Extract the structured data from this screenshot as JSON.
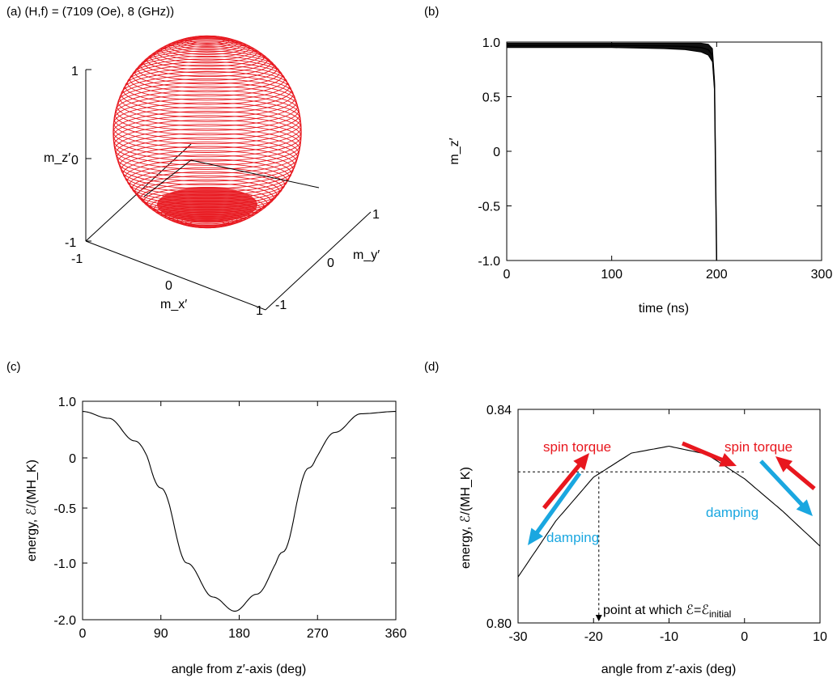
{
  "colors": {
    "sphere": "#e8171e",
    "spin_torque": "#e8171e",
    "damping": "#1aa7e0",
    "curve": "#000000"
  },
  "chart_data": [
    {
      "panel": "(a)",
      "type": "scatter",
      "title": "(a) (H,f) = (7109 (Oe), 8 (GHz))",
      "description_kind": "3d-trajectory",
      "xlabel": "m_x′",
      "ylabel": "m_y′",
      "zlabel": "m_z′",
      "xlim": [
        -1,
        1
      ],
      "ylim": [
        -1,
        1
      ],
      "zlim": [
        -1,
        1
      ],
      "xticks": [
        "-1",
        "0",
        "1"
      ],
      "yticks": [
        "-1",
        "0",
        "1"
      ],
      "zticks": [
        "-1",
        "0",
        "1"
      ],
      "series": [
        {
          "color": "#e8171e",
          "shape": "unit sphere",
          "rings": 60
        }
      ]
    },
    {
      "panel": "(b)",
      "type": "line",
      "title": "(b)",
      "xlabel": "time (ns)",
      "ylabel": "m_z′",
      "xlim": [
        0,
        300
      ],
      "ylim": [
        -1.0,
        1.0
      ],
      "xticks": [
        "0",
        "100",
        "200",
        "300"
      ],
      "yticks": [
        "1.0",
        "0.5",
        "0",
        "-0.5",
        "-1.0"
      ],
      "series": [
        {
          "x": [
            0,
            50,
            100,
            150,
            170,
            185,
            192,
            196,
            198,
            199,
            200
          ],
          "y": [
            0.97,
            0.97,
            0.97,
            0.965,
            0.96,
            0.95,
            0.93,
            0.88,
            0.6,
            -0.2,
            -1.0
          ],
          "band": [
            0.02,
            0.02,
            0.02,
            0.025,
            0.03,
            0.04,
            0.05,
            0.06,
            0.05,
            0.03,
            0.0
          ]
        }
      ]
    },
    {
      "panel": "(c)",
      "type": "line",
      "title": "(c)",
      "xlabel": "angle from z′-axis (deg)",
      "ylabel": "energy, ℰ/(MH_K)",
      "xlim": [
        0,
        360
      ],
      "ylim": [
        -2.0,
        1.0
      ],
      "xticks": [
        "0",
        "90",
        "180",
        "270",
        "360"
      ],
      "yticks": [
        "1.0",
        "0",
        "-0.5",
        "-1.0",
        "-2.0"
      ],
      "series": [
        {
          "x": [
            0,
            30,
            60,
            90,
            120,
            150,
            175,
            200,
            230,
            260,
            290,
            320,
            360
          ],
          "y": [
            0.82,
            0.7,
            0.3,
            -0.3,
            -1.0,
            -1.6,
            -1.85,
            -1.55,
            -0.9,
            -0.1,
            0.45,
            0.78,
            0.82
          ]
        }
      ]
    },
    {
      "panel": "(d)",
      "type": "line",
      "title": "(d)",
      "xlabel": "angle from z′-axis (deg)",
      "ylabel": "energy, ℰ/(MH_K)",
      "xlim": [
        -30,
        10
      ],
      "ylim": [
        0.8,
        0.84
      ],
      "xticks": [
        "-30",
        "-20",
        "-10",
        "0",
        "10"
      ],
      "yticks": [
        "0.84",
        "0.80"
      ],
      "series": [
        {
          "x": [
            -30,
            -25,
            -20,
            -15,
            -10,
            -5,
            0,
            5,
            10
          ],
          "y": [
            0.8086,
            0.8191,
            0.8273,
            0.8318,
            0.8331,
            0.8316,
            0.827,
            0.821,
            0.8144
          ]
        }
      ],
      "annotations": {
        "initial_angle": -19.3,
        "initial_energy": 0.8283,
        "point_label": "point at which ℰ=ℰ",
        "point_sub": "initial",
        "spin_torque_left": "spin torque",
        "spin_torque_right": "spin torque",
        "damping_left": "damping",
        "damping_right": "damping"
      }
    }
  ]
}
